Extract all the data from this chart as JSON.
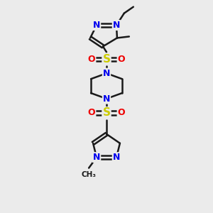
{
  "background_color": "#ebebeb",
  "bond_color": "#1a1a1a",
  "bond_width": 1.8,
  "atom_colors": {
    "N": "#0000ee",
    "O": "#ee0000",
    "S": "#cccc00",
    "C": "#1a1a1a"
  },
  "figsize": [
    3.0,
    3.0
  ],
  "dpi": 100,
  "xlim": [
    -4.5,
    4.5
  ],
  "ylim": [
    -7.5,
    7.5
  ]
}
